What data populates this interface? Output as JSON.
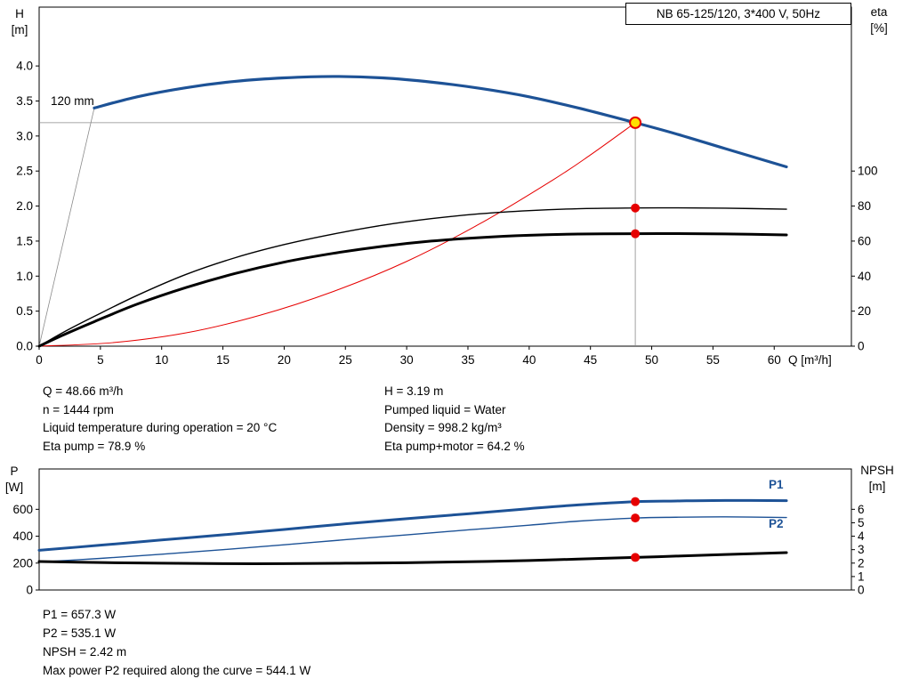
{
  "colors": {
    "blue": "#1d5296",
    "red": "#e60000",
    "black": "#000000",
    "gray": "#8a8a8a",
    "duty_yellow": "#ffe000"
  },
  "info": {
    "q": "Q = 48.66 m³/h",
    "n": "n = 1444 rpm",
    "liquid_temp": "Liquid temperature during operation = 20 °C",
    "eta_pump": "Eta pump = 78.9 %",
    "h": "H = 3.19 m",
    "pumped_liquid": "Pumped liquid = Water",
    "density": "Density = 998.2 kg/m³",
    "eta_pump_motor": "Eta pump+motor = 64.2 %",
    "p1": "P1 = 657.3 W",
    "p2": "P2 = 535.1 W",
    "npsh": "NPSH = 2.42 m",
    "max_power": "Max power P2 required along the curve = 544.1 W"
  },
  "chart_data": [
    {
      "type": "line",
      "title": "NB 65-125/120, 3*400 V, 50Hz",
      "curve_label": "120 mm",
      "xlabel": "Q [m³/h]",
      "ylabel_left": [
        "H",
        "[m]"
      ],
      "ylabel_right": [
        "eta",
        "[%]"
      ],
      "xlim": [
        0,
        66.3
      ],
      "ylim_left": [
        0,
        4.84
      ],
      "ylim_right": [
        0,
        193.6
      ],
      "x_ticks": [
        0,
        5,
        10,
        15,
        20,
        25,
        30,
        35,
        40,
        45,
        50,
        55,
        60
      ],
      "show_x_tick_labels": true,
      "y_ticks_left": [
        "0.0",
        "0.5",
        "1.0",
        "1.5",
        "2.0",
        "2.5",
        "3.0",
        "3.5",
        "4.0"
      ],
      "y_ticks_right": [
        "0",
        "20",
        "40",
        "60",
        "80",
        "100"
      ],
      "ref_lines": [
        {
          "x1": 0,
          "y1": 3.19,
          "x2": 48.66,
          "y2": 3.19
        },
        {
          "x1": 48.66,
          "y1": 0,
          "x2": 48.66,
          "y2": 3.19
        },
        {
          "x1": 0,
          "y1": 0,
          "x2": 4.5,
          "y2": 3.4
        }
      ],
      "series": [
        {
          "name": "system",
          "axis": "left",
          "color": "red",
          "width": 1,
          "points": [
            [
              0,
              0
            ],
            [
              6,
              0.05
            ],
            [
              12,
              0.19
            ],
            [
              18,
              0.44
            ],
            [
              24,
              0.78
            ],
            [
              30,
              1.21
            ],
            [
              36,
              1.75
            ],
            [
              42,
              2.38
            ],
            [
              45,
              2.73
            ],
            [
              48.66,
              3.19
            ]
          ]
        },
        {
          "name": "eta-pump",
          "axis": "right",
          "color": "black",
          "width": 1.4,
          "points": [
            [
              0,
              0
            ],
            [
              2,
              8
            ],
            [
              4.5,
              17
            ],
            [
              8,
              29
            ],
            [
              12,
              41
            ],
            [
              16,
              50.5
            ],
            [
              20,
              58
            ],
            [
              24,
              64
            ],
            [
              28,
              69
            ],
            [
              32,
              72.8
            ],
            [
              36,
              75.6
            ],
            [
              40,
              77.4
            ],
            [
              44,
              78.5
            ],
            [
              48.66,
              78.9
            ],
            [
              52,
              79
            ],
            [
              56,
              78.8
            ],
            [
              61,
              78.2
            ]
          ]
        },
        {
          "name": "eta-pump-motor",
          "axis": "right",
          "color": "black",
          "width": 3,
          "points": [
            [
              0,
              0
            ],
            [
              2,
              6.5
            ],
            [
              4.5,
              14
            ],
            [
              8,
              24
            ],
            [
              12,
              33.5
            ],
            [
              16,
              41.5
            ],
            [
              20,
              48
            ],
            [
              24,
              53
            ],
            [
              28,
              57
            ],
            [
              32,
              60
            ],
            [
              36,
              62
            ],
            [
              40,
              63.3
            ],
            [
              44,
              64
            ],
            [
              48.66,
              64.2
            ],
            [
              52,
              64.3
            ],
            [
              56,
              64.1
            ],
            [
              61,
              63.5
            ]
          ]
        },
        {
          "name": "head-120mm",
          "axis": "left",
          "color": "blue",
          "width": 3.2,
          "points": [
            [
              4.5,
              3.4
            ],
            [
              8,
              3.56
            ],
            [
              12,
              3.69
            ],
            [
              16,
              3.78
            ],
            [
              20,
              3.83
            ],
            [
              24,
              3.85
            ],
            [
              28,
              3.83
            ],
            [
              32,
              3.77
            ],
            [
              36,
              3.68
            ],
            [
              40,
              3.56
            ],
            [
              44,
              3.4
            ],
            [
              48.66,
              3.19
            ],
            [
              52,
              3.03
            ],
            [
              56,
              2.82
            ],
            [
              61,
              2.56
            ]
          ]
        }
      ],
      "markers": [
        {
          "q": 48.66,
          "v": 78.9,
          "axis": "right"
        },
        {
          "q": 48.66,
          "v": 64.2,
          "axis": "right"
        }
      ],
      "duty_point": {
        "q": 48.66,
        "h": 3.19
      }
    },
    {
      "type": "line",
      "title": "",
      "xlabel": "",
      "ylabel_left": [
        "P",
        "[W]"
      ],
      "ylabel_right": [
        "NPSH",
        "[m]"
      ],
      "xlim": [
        0,
        66.3
      ],
      "ylim_left": [
        0,
        900
      ],
      "ylim_right": [
        0,
        9
      ],
      "x_ticks": [],
      "show_x_tick_labels": false,
      "y_ticks_left": [
        "0",
        "200",
        "400",
        "600"
      ],
      "y_ticks_right": [
        "0",
        "1",
        "2",
        "3",
        "4",
        "5",
        "6"
      ],
      "ref_lines": [],
      "series": [
        {
          "name": "p1",
          "label": "P1",
          "axis": "left",
          "color": "blue",
          "width": 3,
          "points": [
            [
              0,
              295
            ],
            [
              5,
              333
            ],
            [
              10,
              372
            ],
            [
              15,
              410
            ],
            [
              20,
              450
            ],
            [
              25,
              492
            ],
            [
              30,
              530
            ],
            [
              35,
              567
            ],
            [
              40,
              605
            ],
            [
              44,
              633
            ],
            [
              48.66,
              657
            ],
            [
              52,
              662
            ],
            [
              56,
              666
            ],
            [
              61,
              664
            ]
          ]
        },
        {
          "name": "p2",
          "label": "P2",
          "axis": "left",
          "color": "blue",
          "width": 1.4,
          "points": [
            [
              0,
              208
            ],
            [
              5,
              235
            ],
            [
              10,
              266
            ],
            [
              15,
              300
            ],
            [
              20,
              336
            ],
            [
              25,
              374
            ],
            [
              30,
              410
            ],
            [
              35,
              447
            ],
            [
              40,
              482
            ],
            [
              44,
              512
            ],
            [
              48.66,
              535
            ],
            [
              52,
              541
            ],
            [
              56,
              544
            ],
            [
              61,
              539
            ]
          ]
        },
        {
          "name": "npsh",
          "axis": "right",
          "color": "black",
          "width": 3,
          "points": [
            [
              0,
              2.12
            ],
            [
              5,
              2.04
            ],
            [
              10,
              1.99
            ],
            [
              15,
              1.96
            ],
            [
              20,
              1.96
            ],
            [
              25,
              1.99
            ],
            [
              30,
              2.03
            ],
            [
              35,
              2.1
            ],
            [
              40,
              2.19
            ],
            [
              44,
              2.3
            ],
            [
              48.66,
              2.42
            ],
            [
              52,
              2.52
            ],
            [
              56,
              2.64
            ],
            [
              61,
              2.78
            ]
          ]
        }
      ],
      "markers": [
        {
          "q": 48.66,
          "v": 657.3,
          "axis": "left"
        },
        {
          "q": 48.66,
          "v": 535.1,
          "axis": "left"
        },
        {
          "q": 48.66,
          "v": 2.42,
          "axis": "right"
        }
      ]
    }
  ]
}
